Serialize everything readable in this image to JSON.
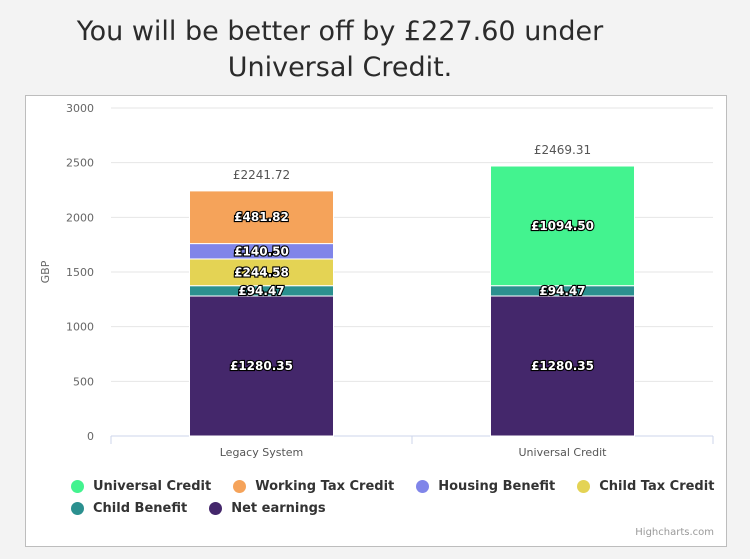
{
  "headline": "You will be better off by £227.60 under Universal Credit.",
  "credits": "Highcharts.com",
  "chart_data": {
    "type": "bar",
    "stacked": true,
    "ylabel": "GBP",
    "ylim": [
      0,
      3000
    ],
    "yticks": [
      0,
      500,
      1000,
      1500,
      2000,
      2500,
      3000
    ],
    "grid": true,
    "legend_position": "bottom",
    "categories": [
      "Legacy System",
      "Universal Credit"
    ],
    "totals": [
      "£2241.72",
      "£2469.31"
    ],
    "series": [
      {
        "name": "Universal Credit",
        "color": "#43f38f",
        "values": [
          0,
          1094.5
        ],
        "labels": [
          "",
          "£1094.50"
        ]
      },
      {
        "name": "Working Tax Credit",
        "color": "#f5a35a",
        "values": [
          481.82,
          0
        ],
        "labels": [
          "£481.82",
          ""
        ]
      },
      {
        "name": "Housing Benefit",
        "color": "#8085e9",
        "values": [
          140.5,
          0
        ],
        "labels": [
          "£140.50",
          ""
        ]
      },
      {
        "name": "Child Tax Credit",
        "color": "#e4d354",
        "values": [
          244.58,
          0
        ],
        "labels": [
          "£244.58",
          ""
        ]
      },
      {
        "name": "Child Benefit",
        "color": "#2b908f",
        "values": [
          94.47,
          94.47
        ],
        "labels": [
          "£94.47",
          "£94.47"
        ]
      },
      {
        "name": "Net earnings",
        "color": "#44276b",
        "values": [
          1280.35,
          1280.35
        ],
        "labels": [
          "£1280.35",
          "£1280.35"
        ]
      }
    ]
  }
}
